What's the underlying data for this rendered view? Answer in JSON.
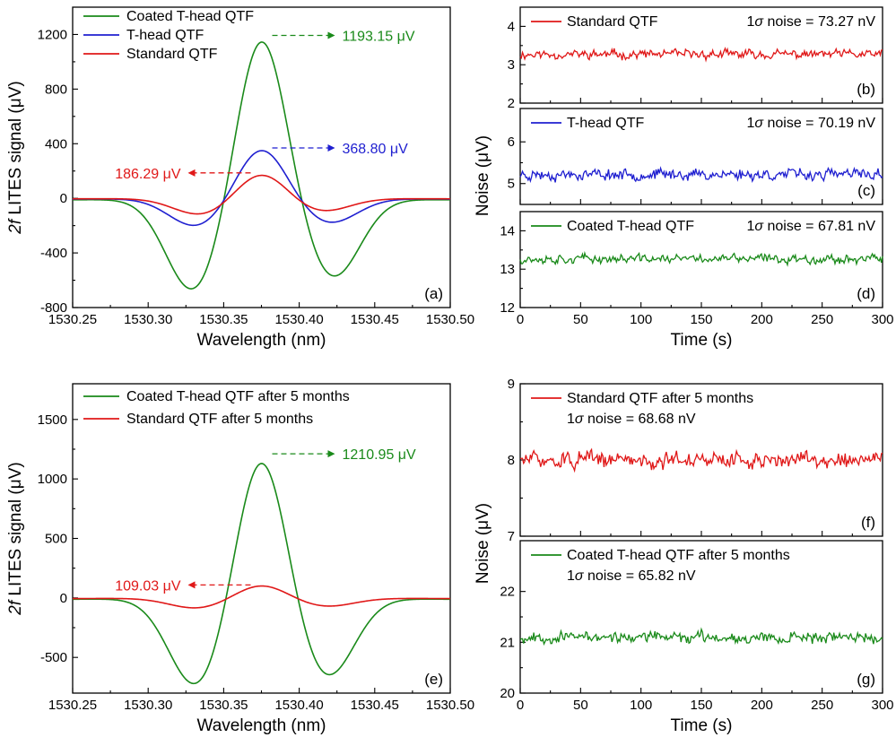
{
  "chart_data": [
    {
      "id": "a",
      "type": "line",
      "panel_label": "(a)",
      "xlabel": "Wavelength (nm)",
      "ylabel_italic": "2f",
      "ylabel_rest": " LITES signal (μV)",
      "xlim": [
        1530.25,
        1530.5
      ],
      "ylim": [
        -800,
        1400
      ],
      "x_ticks": [
        "1530.25",
        "1530.30",
        "1530.35",
        "1530.40",
        "1530.45",
        "1530.50"
      ],
      "y_ticks": [
        "-800",
        "-400",
        "0",
        "400",
        "800",
        "1200"
      ],
      "x_tick_values": [
        1530.25,
        1530.3,
        1530.35,
        1530.4,
        1530.45,
        1530.5
      ],
      "y_tick_values": [
        -800,
        -400,
        0,
        400,
        800,
        1200
      ],
      "legend_position": "top-left",
      "series": [
        {
          "name": "Coated T-head  QTF",
          "color": "#1a8a1a",
          "peak": 1193.15,
          "peak_x": 1530.375,
          "troughs": [
            {
              "x": 1530.33,
              "y": -680
            },
            {
              "x": 1530.422,
              "y": -580
            }
          ],
          "tail": -30
        },
        {
          "name": "T-head QTF",
          "color": "#1f1fd0",
          "peak": 368.8,
          "peak_x": 1530.375,
          "troughs": [
            {
              "x": 1530.332,
              "y": -205
            },
            {
              "x": 1530.42,
              "y": -180
            }
          ],
          "tail": -15
        },
        {
          "name": "Standard QTF",
          "color": "#e01818",
          "peak": 186.29,
          "peak_x": 1530.375,
          "troughs": [
            {
              "x": 1530.335,
              "y": -120
            },
            {
              "x": 1530.415,
              "y": -95
            }
          ],
          "tail": -10
        }
      ],
      "annotations": [
        {
          "text": "1193.15 μV",
          "color": "#1a8a1a",
          "direction": "right",
          "y": 1193.15
        },
        {
          "text": "368.80 μV",
          "color": "#1f1fd0",
          "direction": "right",
          "y": 368.8
        },
        {
          "text": "186.29 μV",
          "color": "#e01818",
          "direction": "left",
          "y": 186.29
        }
      ]
    },
    {
      "id": "b",
      "type": "line",
      "panel_label": "(b)",
      "xlim": [
        0,
        300
      ],
      "ylim": [
        2,
        4.5
      ],
      "y_ticks": [
        "2",
        "3",
        "4"
      ],
      "y_tick_values": [
        2,
        3,
        4
      ],
      "series": [
        {
          "name": "Standard QTF",
          "color": "#e01818",
          "mean": 3.27,
          "amplitude": 0.14,
          "noise_label": "1σ noise = 73.27 nV"
        }
      ]
    },
    {
      "id": "c",
      "type": "line",
      "panel_label": "(c)",
      "xlim": [
        0,
        300
      ],
      "ylim": [
        4.5,
        6.8
      ],
      "y_ticks": [
        "5",
        "6"
      ],
      "y_tick_values": [
        5,
        6
      ],
      "series": [
        {
          "name": "T-head QTF",
          "color": "#1f1fd0",
          "mean": 5.22,
          "amplitude": 0.16,
          "noise_label": "1σ noise = 70.19 nV"
        }
      ]
    },
    {
      "id": "d",
      "type": "line",
      "panel_label": "(d)",
      "xlim": [
        0,
        300
      ],
      "ylim": [
        12,
        14.5
      ],
      "x_ticks": [
        "0",
        "50",
        "100",
        "150",
        "200",
        "250",
        "300"
      ],
      "x_tick_values": [
        0,
        50,
        100,
        150,
        200,
        250,
        300
      ],
      "y_ticks": [
        "12",
        "13",
        "14"
      ],
      "y_tick_values": [
        12,
        13,
        14
      ],
      "xlabel": "Time (s)",
      "series": [
        {
          "name": "Coated T-head QTF",
          "color": "#1a8a1a",
          "mean": 13.27,
          "amplitude": 0.14,
          "noise_label": "1σ noise = 67.81 nV"
        }
      ]
    },
    {
      "id": "e",
      "type": "line",
      "panel_label": "(e)",
      "xlabel": "Wavelength (nm)",
      "ylabel_italic": "2f",
      "ylabel_rest": " LITES signal (μV)",
      "xlim": [
        1530.25,
        1530.5
      ],
      "ylim": [
        -800,
        1800
      ],
      "x_ticks": [
        "1530.25",
        "1530.30",
        "1530.35",
        "1530.40",
        "1530.45",
        "1530.50"
      ],
      "y_ticks": [
        "-500",
        "0",
        "500",
        "1000",
        "1500"
      ],
      "x_tick_values": [
        1530.25,
        1530.3,
        1530.35,
        1530.4,
        1530.45,
        1530.5
      ],
      "y_tick_values": [
        -500,
        0,
        500,
        1000,
        1500
      ],
      "legend_position": "top-left",
      "series": [
        {
          "name": "Coated T-head  QTF after 5 months",
          "color": "#1a8a1a",
          "peak": 1210.95,
          "peak_x": 1530.375,
          "troughs": [
            {
              "x": 1530.332,
              "y": -745
            },
            {
              "x": 1530.418,
              "y": -670
            }
          ],
          "tail": -30
        },
        {
          "name": "Standard QTF after 5 months",
          "color": "#e01818",
          "peak": 109.03,
          "peak_x": 1530.375,
          "troughs": [
            {
              "x": 1530.332,
              "y": -85
            },
            {
              "x": 1530.418,
              "y": -70
            }
          ],
          "tail": -15
        }
      ],
      "annotations": [
        {
          "text": "1210.95 μV",
          "color": "#1a8a1a",
          "direction": "right",
          "y": 1210.95
        },
        {
          "text": "109.03 μV",
          "color": "#e01818",
          "direction": "left",
          "y": 109.03
        }
      ]
    },
    {
      "id": "f",
      "type": "line",
      "panel_label": "(f)",
      "xlim": [
        0,
        300
      ],
      "ylim": [
        7,
        9
      ],
      "y_ticks": [
        "7",
        "8",
        "9"
      ],
      "y_tick_values": [
        7,
        8,
        9
      ],
      "series": [
        {
          "name": "Standard QTF after 5 months",
          "color": "#e01818",
          "mean": 8.0,
          "amplitude": 0.13,
          "noise_label": "1σ noise = 68.68 nV"
        }
      ]
    },
    {
      "id": "g",
      "type": "line",
      "panel_label": "(g)",
      "xlim": [
        0,
        300
      ],
      "ylim": [
        20,
        23
      ],
      "x_ticks": [
        "0",
        "50",
        "100",
        "150",
        "200",
        "250",
        "300"
      ],
      "x_tick_values": [
        0,
        50,
        100,
        150,
        200,
        250,
        300
      ],
      "y_ticks": [
        "20",
        "21",
        "22"
      ],
      "y_tick_values": [
        20,
        21,
        22
      ],
      "xlabel": "Time (s)",
      "series": [
        {
          "name": "Coated T-head QTF after 5 months",
          "color": "#1a8a1a",
          "mean": 21.1,
          "amplitude": 0.13,
          "noise_label": "1σ noise = 65.82 nV"
        }
      ]
    }
  ],
  "shared_labels": {
    "noise_ylabel_top": "Noise (μV)",
    "noise_ylabel_bottom": "Noise (μV)"
  }
}
